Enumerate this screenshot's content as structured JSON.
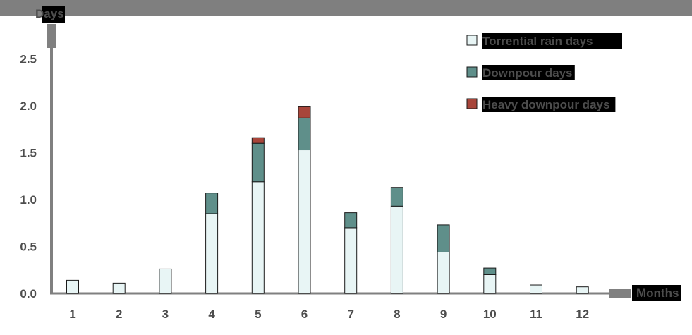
{
  "chart_data": {
    "type": "bar",
    "stacked": true,
    "ylabel": "Days",
    "xlabel": "Months",
    "ylim": [
      0,
      2.5
    ],
    "yticks": [
      "0.0",
      "0.5",
      "1.0",
      "1.5",
      "2.0",
      "2.5"
    ],
    "categories": [
      "1",
      "2",
      "3",
      "4",
      "5",
      "6",
      "7",
      "8",
      "9",
      "10",
      "11",
      "12"
    ],
    "series": [
      {
        "name": "Torrential rain days",
        "color": "#e8f5f5",
        "values": [
          0.14,
          0.11,
          0.26,
          0.85,
          1.19,
          1.53,
          0.7,
          0.93,
          0.44,
          0.2,
          0.09,
          0.07
        ]
      },
      {
        "name": "Downpour days",
        "color": "#5f8f8a",
        "values": [
          0,
          0,
          0,
          0.22,
          0.41,
          0.34,
          0.16,
          0.2,
          0.29,
          0.07,
          0,
          0
        ]
      },
      {
        "name": "Heavy downpour days",
        "color": "#a8453a",
        "values": [
          0,
          0,
          0,
          0,
          0.06,
          0.12,
          0,
          0,
          0,
          0,
          0,
          0
        ]
      }
    ],
    "legend_position": "top-right",
    "grid": false
  }
}
